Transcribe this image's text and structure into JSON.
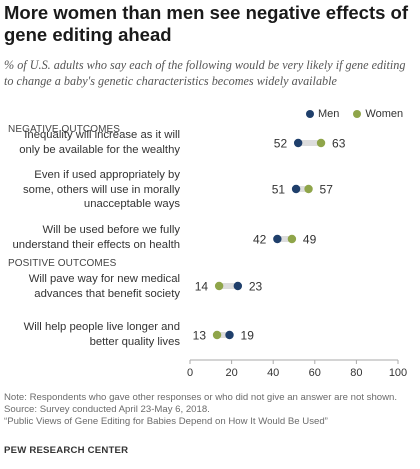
{
  "title": "More women than men see negative effects of gene editing ahead",
  "subtitle": "% of U.S. adults who say each of the following would be very likely if gene editing to change a baby's genetic characteristics becomes widely available",
  "colors": {
    "men": "#1f3f6b",
    "women": "#8fa54a",
    "connector": "#dddddd",
    "axis": "#aaaaaa"
  },
  "chart_data": {
    "type": "dot",
    "series": [
      {
        "name": "Men",
        "values": [
          52,
          51,
          42,
          23,
          19
        ]
      },
      {
        "name": "Women",
        "values": [
          63,
          57,
          49,
          14,
          13
        ]
      }
    ],
    "categories": [
      "Inequality will increase as it will only be available for the wealthy",
      "Even if used appropriately by some, others will use in morally unacceptable ways",
      "Will be used before we fully understand their effects on health",
      "Will pave way for new medical advances that benefit society",
      "Will help people live longer and better quality lives"
    ],
    "groups": [
      {
        "label": "NEGATIVE OUTCOMES",
        "rows": [
          0,
          1,
          2
        ]
      },
      {
        "label": "POSITIVE OUTCOMES",
        "rows": [
          3,
          4
        ]
      }
    ],
    "xlim": [
      0,
      100
    ],
    "xticks": [
      0,
      20,
      40,
      60,
      80,
      100
    ],
    "legend_position": "top-right"
  },
  "footer": {
    "note": "Note: Respondents who gave other responses or who did not give an answer are not shown.",
    "source": "Source: Survey conducted April 23-May 6, 2018.",
    "report": "“Public Views of Gene Editing for Babies Depend on How It Would Be Used”",
    "org": "PEW RESEARCH CENTER"
  }
}
